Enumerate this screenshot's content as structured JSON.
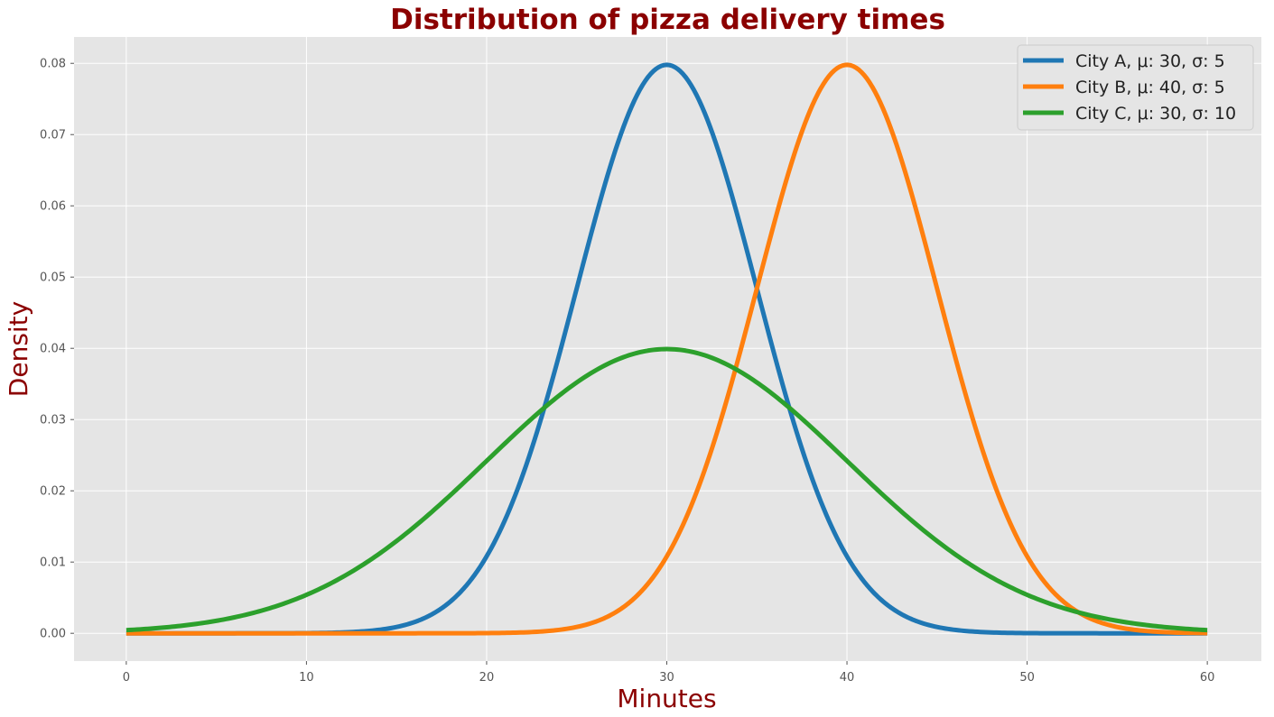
{
  "chart_data": {
    "type": "line",
    "title": "Distribution of pizza delivery times",
    "xlabel": "Minutes",
    "ylabel": "Density",
    "xlim": [
      -2.9,
      63
    ],
    "ylim": [
      -0.0039,
      0.0837
    ],
    "xticks": [
      0,
      10,
      20,
      30,
      40,
      50,
      60
    ],
    "yticks": [
      0.0,
      0.01,
      0.02,
      0.03,
      0.04,
      0.05,
      0.06,
      0.07,
      0.08
    ],
    "ytick_labels": [
      "0.00",
      "0.01",
      "0.02",
      "0.03",
      "0.04",
      "0.05",
      "0.06",
      "0.07",
      "0.08"
    ],
    "grid": true,
    "legend_position": "top-right",
    "style": {
      "plot_background": "#e5e5e5",
      "grid_color": "#ffffff",
      "title_color": "#8b0000"
    },
    "x_range": [
      0,
      60
    ],
    "series": [
      {
        "name": "City A, μ: 30, σ: 5",
        "mu": 30,
        "sigma": 5,
        "color": "#1f77b4",
        "x": [
          0,
          10,
          15,
          20,
          25,
          30,
          35,
          40,
          45,
          50,
          60
        ],
        "y": [
          0.0,
          0.0001,
          0.0009,
          0.0108,
          0.0484,
          0.0798,
          0.0484,
          0.0108,
          0.0009,
          0.0001,
          0.0
        ]
      },
      {
        "name": "City B, μ: 40, σ: 5",
        "mu": 40,
        "sigma": 5,
        "color": "#ff7f0e",
        "x": [
          0,
          20,
          25,
          30,
          35,
          40,
          45,
          50,
          55,
          60
        ],
        "y": [
          0.0,
          0.0001,
          0.0009,
          0.0108,
          0.0484,
          0.0798,
          0.0484,
          0.0108,
          0.0009,
          0.0001
        ]
      },
      {
        "name": "City C, μ: 30, σ: 10",
        "mu": 30,
        "sigma": 10,
        "color": "#2ca02c",
        "x": [
          0,
          10,
          20,
          30,
          40,
          50,
          60
        ],
        "y": [
          0.0004,
          0.0054,
          0.0242,
          0.0399,
          0.0242,
          0.0054,
          0.0004
        ]
      }
    ]
  }
}
